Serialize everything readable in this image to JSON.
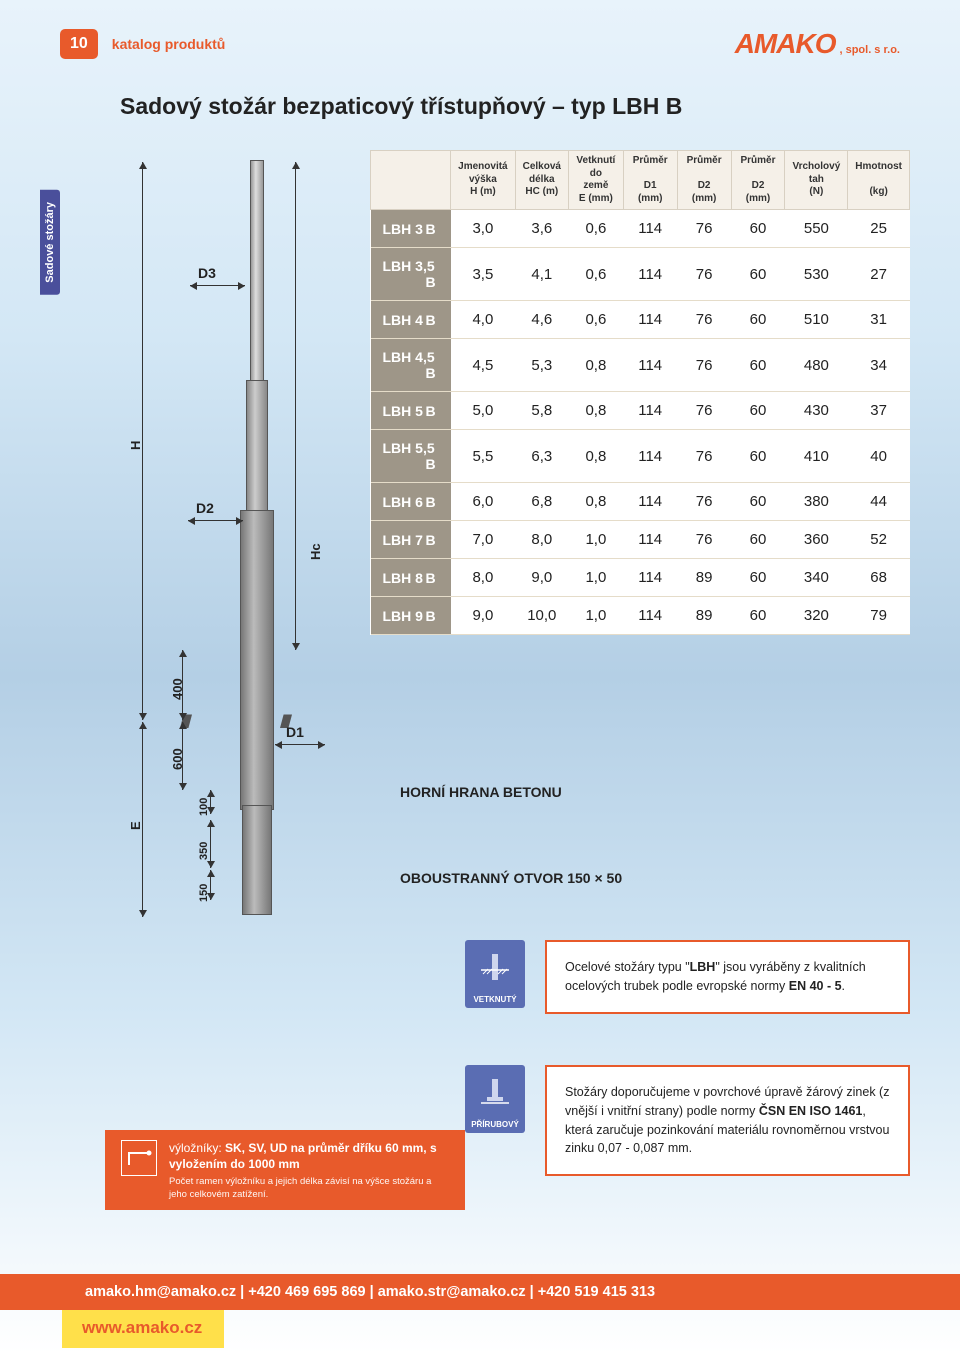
{
  "page_number": "10",
  "katalog_label": "katalog produktů",
  "logo": {
    "main": "AMAKO",
    "suffix": ", spol. s r.o."
  },
  "title": "Sadový stožár bezpaticový třístupňový – typ LBH B",
  "sidebar_tab": "Sadové stožáry",
  "diagram": {
    "D3": "D3",
    "D2": "D2",
    "D1": "D1",
    "H": "H",
    "Hc": "Hc",
    "E": "E",
    "v400": "400",
    "v600": "600",
    "v100": "100",
    "v350": "350",
    "v150": "150",
    "horni": "HORNÍ HRANA BETONU",
    "otvor": "OBOUSTRANNÝ OTVOR 150 × 50"
  },
  "table": {
    "columns": [
      "",
      "Jmenovitá výška\nH (m)",
      "Celková délka\nHC (m)",
      "Vetknutí do země\nE (mm)",
      "Průměr\nD1 (mm)",
      "Průměr\nD2 (mm)",
      "Průměr\nD2 (mm)",
      "Vrcholový tah\n(N)",
      "Hmotnost\n(kg)"
    ],
    "rows": [
      [
        "LBH 3   B",
        "3,0",
        "3,6",
        "0,6",
        "114",
        "76",
        "60",
        "550",
        "25"
      ],
      [
        "LBH 3,5 B",
        "3,5",
        "4,1",
        "0,6",
        "114",
        "76",
        "60",
        "530",
        "27"
      ],
      [
        "LBH 4   B",
        "4,0",
        "4,6",
        "0,6",
        "114",
        "76",
        "60",
        "510",
        "31"
      ],
      [
        "LBH 4,5 B",
        "4,5",
        "5,3",
        "0,8",
        "114",
        "76",
        "60",
        "480",
        "34"
      ],
      [
        "LBH 5   B",
        "5,0",
        "5,8",
        "0,8",
        "114",
        "76",
        "60",
        "430",
        "37"
      ],
      [
        "LBH 5,5 B",
        "5,5",
        "6,3",
        "0,8",
        "114",
        "76",
        "60",
        "410",
        "40"
      ],
      [
        "LBH 6   B",
        "6,0",
        "6,8",
        "0,8",
        "114",
        "76",
        "60",
        "380",
        "44"
      ],
      [
        "LBH 7   B",
        "7,0",
        "8,0",
        "1,0",
        "114",
        "76",
        "60",
        "360",
        "52"
      ],
      [
        "LBH 8   B",
        "8,0",
        "9,0",
        "1,0",
        "114",
        "89",
        "60",
        "340",
        "68"
      ],
      [
        "LBH 9   B",
        "9,0",
        "10,0",
        "1,0",
        "114",
        "89",
        "60",
        "320",
        "79"
      ]
    ],
    "header_bg": "#f5f0e8",
    "model_bg": "#9e9688"
  },
  "icon_vetknuty": "VETKNUTÝ",
  "icon_prirubovy": "PŘÍRUBOVÝ",
  "info1": {
    "pre": "Ocelové stožáry typu \"",
    "bold1": "LBH",
    "mid": "\" jsou vyráběny z kvalitních ocelových trubek podle evropské normy ",
    "bold2": "EN 40 - 5",
    "post": "."
  },
  "info2": {
    "pre": "Stožáry doporučujeme v povrchové úpravě žárový zinek (z vnější i vnitřní strany) podle normy ",
    "bold1": "ČSN EN ISO 1461",
    "post": ", která zaručuje pozinkování materiálu rovnoměrnou vrstvou zinku 0,07 - 0,087 mm."
  },
  "vylozniky": {
    "pre": "výložníky: ",
    "bold": "SK, SV, UD na průměr dříku 60 mm, s vyložením do 1000 mm",
    "note": "Počet ramen výložníku a jejich délka závisí na výšce stožáru a jeho celkovém zatížení."
  },
  "footer": {
    "contacts": "amako.hm@amako.cz   |   +420 469 695 869   |   amako.str@amako.cz   |   +420 519 415 313",
    "site": "www.amako.cz"
  },
  "colors": {
    "accent": "#e85a2b",
    "blue": "#5a6db3",
    "purple": "#4a4f9b",
    "yellow": "#ffe04a"
  }
}
